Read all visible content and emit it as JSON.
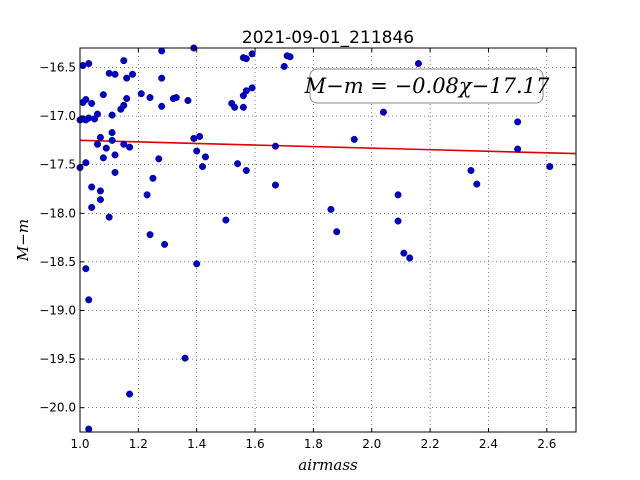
{
  "chart_data": {
    "type": "scatter",
    "title": "2021-09-01_211846",
    "xlabel": "airmass",
    "ylabel": "M−m",
    "xlim": [
      1.0,
      2.7
    ],
    "ylim": [
      -20.25,
      -16.3
    ],
    "y_inverted": true,
    "grid": true,
    "x_ticks": [
      1.0,
      1.2,
      1.4,
      1.6,
      1.8,
      2.0,
      2.2,
      2.4,
      2.6
    ],
    "x_tick_labels": [
      "1.0",
      "1.2",
      "1.4",
      "1.6",
      "1.8",
      "2.0",
      "2.2",
      "2.4",
      "2.6"
    ],
    "y_ticks": [
      -16.5,
      -17.0,
      -17.5,
      -18.0,
      -18.5,
      -19.0,
      -19.5,
      -20.0
    ],
    "y_tick_labels": [
      "−16.5",
      "−17.0",
      "−17.5",
      "−18.0",
      "−18.5",
      "−19.0",
      "−19.5",
      "−20.0"
    ],
    "annotation": "M−m = −0.08χ−17.17",
    "marker_color": "#0000cc",
    "fit_color": "#dd0000",
    "fit": {
      "slope": -0.08,
      "intercept": -17.17
    },
    "points": [
      [
        1.0,
        -17.04
      ],
      [
        1.0,
        -17.53
      ],
      [
        1.01,
        -16.86
      ],
      [
        1.01,
        -16.48
      ],
      [
        1.01,
        -17.03
      ],
      [
        1.02,
        -16.83
      ],
      [
        1.02,
        -17.48
      ],
      [
        1.02,
        -18.57
      ],
      [
        1.02,
        -17.04
      ],
      [
        1.03,
        -16.46
      ],
      [
        1.03,
        -17.02
      ],
      [
        1.03,
        -18.89
      ],
      [
        1.03,
        -20.22
      ],
      [
        1.04,
        -16.87
      ],
      [
        1.04,
        -17.73
      ],
      [
        1.04,
        -17.94
      ],
      [
        1.05,
        -17.03
      ],
      [
        1.06,
        -16.98
      ],
      [
        1.06,
        -17.29
      ],
      [
        1.07,
        -17.22
      ],
      [
        1.07,
        -17.77
      ],
      [
        1.07,
        -17.86
      ],
      [
        1.08,
        -16.78
      ],
      [
        1.08,
        -17.43
      ],
      [
        1.09,
        -17.33
      ],
      [
        1.1,
        -16.56
      ],
      [
        1.1,
        -18.04
      ],
      [
        1.11,
        -16.99
      ],
      [
        1.11,
        -17.17
      ],
      [
        1.11,
        -17.25
      ],
      [
        1.12,
        -16.57
      ],
      [
        1.12,
        -17.4
      ],
      [
        1.12,
        -17.58
      ],
      [
        1.14,
        -16.93
      ],
      [
        1.15,
        -16.43
      ],
      [
        1.15,
        -16.89
      ],
      [
        1.15,
        -17.29
      ],
      [
        1.16,
        -16.82
      ],
      [
        1.16,
        -16.61
      ],
      [
        1.17,
        -17.32
      ],
      [
        1.17,
        -19.86
      ],
      [
        1.18,
        -16.57
      ],
      [
        1.21,
        -16.77
      ],
      [
        1.23,
        -17.81
      ],
      [
        1.24,
        -16.81
      ],
      [
        1.24,
        -18.22
      ],
      [
        1.25,
        -17.64
      ],
      [
        1.27,
        -17.44
      ],
      [
        1.28,
        -16.33
      ],
      [
        1.28,
        -16.61
      ],
      [
        1.28,
        -16.9
      ],
      [
        1.29,
        -18.32
      ],
      [
        1.32,
        -16.82
      ],
      [
        1.33,
        -16.81
      ],
      [
        1.36,
        -19.49
      ],
      [
        1.37,
        -16.84
      ],
      [
        1.39,
        -16.3
      ],
      [
        1.39,
        -17.23
      ],
      [
        1.4,
        -17.36
      ],
      [
        1.4,
        -18.52
      ],
      [
        1.41,
        -17.21
      ],
      [
        1.42,
        -17.52
      ],
      [
        1.43,
        -17.42
      ],
      [
        1.5,
        -18.07
      ],
      [
        1.52,
        -16.87
      ],
      [
        1.53,
        -16.91
      ],
      [
        1.54,
        -17.49
      ],
      [
        1.56,
        -16.79
      ],
      [
        1.56,
        -16.91
      ],
      [
        1.56,
        -16.4
      ],
      [
        1.57,
        -16.41
      ],
      [
        1.57,
        -16.74
      ],
      [
        1.57,
        -17.56
      ],
      [
        1.59,
        -16.36
      ],
      [
        1.59,
        -16.71
      ],
      [
        1.67,
        -17.71
      ],
      [
        1.67,
        -17.31
      ],
      [
        1.7,
        -16.49
      ],
      [
        1.71,
        -16.38
      ],
      [
        1.72,
        -16.39
      ],
      [
        1.86,
        -17.96
      ],
      [
        1.88,
        -18.19
      ],
      [
        1.94,
        -17.24
      ],
      [
        2.04,
        -16.96
      ],
      [
        2.09,
        -18.08
      ],
      [
        2.09,
        -17.81
      ],
      [
        2.11,
        -18.41
      ],
      [
        2.13,
        -18.46
      ],
      [
        2.16,
        -16.46
      ],
      [
        2.34,
        -17.56
      ],
      [
        2.36,
        -17.7
      ],
      [
        2.5,
        -17.06
      ],
      [
        2.5,
        -17.34
      ],
      [
        2.61,
        -17.52
      ]
    ]
  }
}
